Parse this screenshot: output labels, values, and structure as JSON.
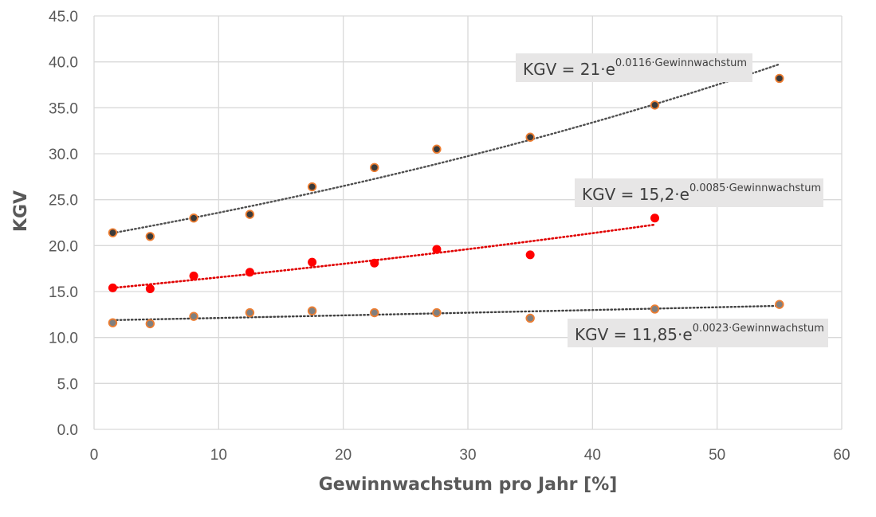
{
  "chart_data": {
    "type": "scatter",
    "title": "",
    "xlabel": "Gewinnwachstum pro Jahr [%]",
    "ylabel": "KGV",
    "xlim": [
      0,
      60
    ],
    "ylim": [
      0,
      45
    ],
    "x_ticks": [
      "0",
      "10",
      "20",
      "30",
      "40",
      "50",
      "60"
    ],
    "y_ticks": [
      "0.0",
      "5.0",
      "10.0",
      "15.0",
      "20.0",
      "25.0",
      "30.0",
      "35.0",
      "40.0",
      "45.0"
    ],
    "x_tick_values": [
      0,
      10,
      20,
      30,
      40,
      50,
      60
    ],
    "y_tick_values": [
      0,
      5,
      10,
      15,
      20,
      25,
      30,
      35,
      40,
      45
    ],
    "grid": true,
    "legend": "none",
    "series": [
      {
        "marker_fill": "#3a3a3a",
        "marker_edge": "#ed7d31",
        "trend_color": "#505050",
        "x": [
          1.5,
          4.5,
          8,
          12.5,
          17.5,
          22.5,
          27.5,
          35,
          45,
          55
        ],
        "y": [
          21.4,
          21.0,
          23.0,
          23.4,
          26.4,
          28.5,
          30.5,
          31.8,
          35.3,
          38.2
        ],
        "trendline": {
          "a": 21,
          "b": 0.0116,
          "x_range": [
            1.5,
            55
          ]
        },
        "equation": {
          "main": "KGV = 21·e",
          "sup": "0.0116·Gewinnwachstum"
        }
      },
      {
        "marker_fill": "#ff0000",
        "marker_edge": "#ff0000",
        "trend_color": "#e00000",
        "x": [
          1.5,
          4.5,
          8,
          12.5,
          17.5,
          22.5,
          27.5,
          35,
          45
        ],
        "y": [
          15.4,
          15.3,
          16.7,
          17.1,
          18.2,
          18.1,
          19.6,
          19.0,
          23.0
        ],
        "trendline": {
          "a": 15.2,
          "b": 0.0085,
          "x_range": [
            1.5,
            45
          ]
        },
        "equation": {
          "main": "KGV = 15,2·e",
          "sup": "0.0085·Gewinnwachstum"
        }
      },
      {
        "marker_fill": "#7f7f7f",
        "marker_edge": "#ed7d31",
        "trend_color": "#404040",
        "x": [
          1.5,
          4.5,
          8,
          12.5,
          17.5,
          22.5,
          27.5,
          35,
          45,
          55
        ],
        "y": [
          11.6,
          11.5,
          12.3,
          12.7,
          12.9,
          12.7,
          12.7,
          12.1,
          13.1,
          13.6
        ],
        "trendline": {
          "a": 11.85,
          "b": 0.0023,
          "x_range": [
            1.5,
            55
          ]
        },
        "equation": {
          "main": "KGV = 11,85·e",
          "sup": "0.0023·Gewinnwachstum"
        }
      }
    ]
  }
}
